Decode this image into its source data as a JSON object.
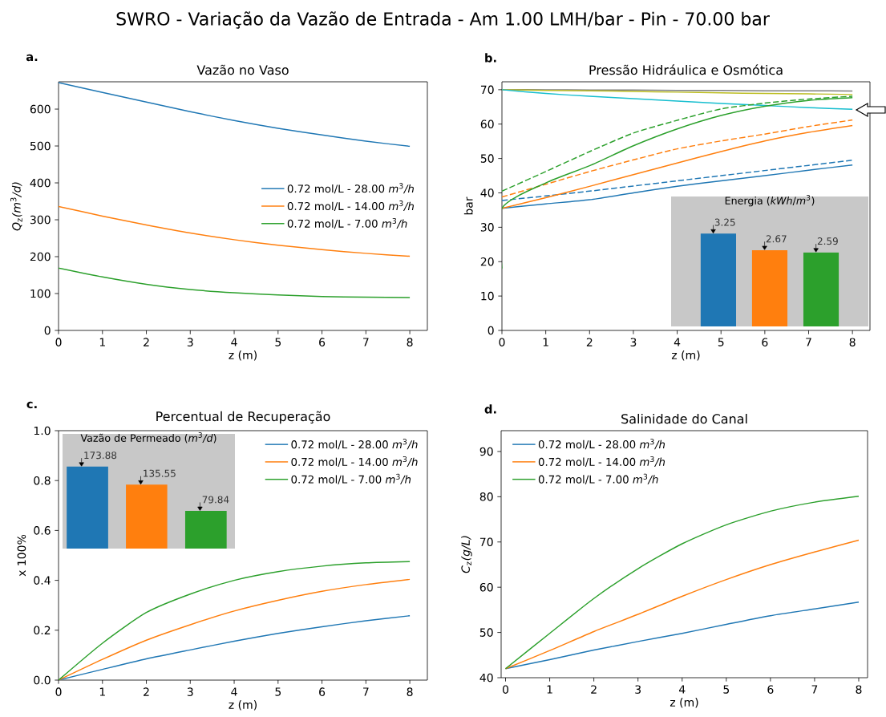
{
  "chart_data": [
    {
      "type": "line",
      "title": "Vazão no Vaso",
      "xlabel": "z (m)",
      "ylabel": "*Q*$_{z}$*(m*$^{3}$*/d)*",
      "annotations": [
        "SWRO - Variação da Vazão de Entrada - Am 1.00 LMH/bar - Pin - 70.00 bar",
        "a."
      ],
      "x": [
        0,
        1,
        2,
        3,
        4,
        5,
        6,
        7,
        8
      ],
      "series": [
        {
          "name": "0.72 mol/L - 28.00 *m*$^{3}$*/h*",
          "color": "#1f77b4",
          "values": [
            672,
            645,
            619,
            593,
            569,
            548,
            530,
            513,
            499
          ]
        },
        {
          "name": "0.72 mol/L - 14.00 *m*$^{3}$*/h*",
          "color": "#ff7f0e",
          "values": [
            336,
            310,
            286,
            264,
            246,
            231,
            219,
            209,
            201
          ]
        },
        {
          "name": "0.72 mol/L - 7.00 *m*$^{3}$*/h*",
          "color": "#2ca02c",
          "values": [
            169,
            145,
            125,
            111,
            102,
            96,
            92,
            90,
            89
          ]
        }
      ],
      "xlim": [
        0,
        8.4
      ],
      "ylim": [
        0,
        674
      ],
      "xticks": [
        0,
        1,
        2,
        3,
        4,
        5,
        6,
        7,
        8
      ],
      "yticks": [
        0,
        100,
        200,
        300,
        400,
        500,
        600
      ],
      "legend": "right"
    },
    {
      "type": "line",
      "title": "Pressão Hidráulica e Osmótica",
      "xlabel": "z (m)",
      "ylabel": "bar",
      "annotations": [
        "b."
      ],
      "x": [
        0,
        1,
        2,
        3,
        4,
        5,
        6,
        7,
        8
      ],
      "series": [
        {
          "color": "#7f7f7f",
          "values": [
            70,
            70,
            69.9,
            69.9,
            69.8,
            69.8,
            69.7,
            69.7,
            69.6
          ]
        },
        {
          "color": "#bcbd22",
          "values": [
            70,
            69.8,
            69.7,
            69.5,
            69.3,
            69.1,
            68.9,
            68.8,
            68.6
          ]
        },
        {
          "color": "#17becf",
          "values": [
            70,
            68.9,
            68.1,
            67.4,
            66.7,
            66,
            65.4,
            64.8,
            64.3
          ]
        },
        {
          "color": "#1f77b4",
          "values": [
            35.5,
            36.8,
            38.0,
            40.0,
            41.9,
            43.5,
            45.0,
            46.6,
            48.1
          ]
        },
        {
          "color": "#1f77b4",
          "line_style": "dashed",
          "values": [
            37.8,
            39.1,
            40.5,
            42.0,
            43.5,
            45.0,
            46.5,
            48.0,
            49.5
          ]
        },
        {
          "color": "#ff7f0e",
          "values": [
            35.5,
            38.6,
            41.9,
            45.3,
            48.7,
            52.0,
            55.1,
            57.6,
            59.6
          ]
        },
        {
          "color": "#ff7f0e",
          "line_style": "dashed",
          "values": [
            38.8,
            42.5,
            46.2,
            49.6,
            52.8,
            55.1,
            57.1,
            59.3,
            61.2
          ]
        },
        {
          "color": "#2ca02c",
          "x": [
            0,
            0,
            1,
            2,
            3,
            4,
            5,
            6,
            7,
            8
          ],
          "values": [
            18,
            35.5,
            42.9,
            47.9,
            53.7,
            58.6,
            62.5,
            65.2,
            66.9,
            67.7
          ]
        },
        {
          "color": "#2ca02c",
          "line_style": "dashed",
          "values": [
            40.5,
            46.2,
            52.0,
            57.4,
            61.1,
            64.4,
            66.1,
            67.3,
            68.1
          ]
        }
      ],
      "xlim": [
        0,
        8.4
      ],
      "ylim": [
        0,
        72.3
      ],
      "xticks": [
        0,
        1,
        2,
        3,
        4,
        5,
        6,
        7,
        8
      ],
      "yticks": [
        0,
        10,
        20,
        30,
        40,
        50,
        60,
        70
      ]
    },
    {
      "type": "bar",
      "title": "Energia (*kWh*/*m*$^{3}$)",
      "categories": [
        null,
        null,
        null
      ],
      "values": [
        3.25,
        2.67,
        2.59
      ],
      "colors": [
        "#1f77b4",
        "#ff7f0e",
        "#2ca02c"
      ],
      "data_labels": true,
      "tick_labels": false
    },
    {
      "type": "line",
      "title": "Percentual de Recuperação",
      "xlabel": "z (m)",
      "ylabel": "x 100%",
      "annotations": [
        "c."
      ],
      "x": [
        0,
        1,
        2,
        3,
        4,
        5,
        6,
        7,
        8
      ],
      "series": [
        {
          "name": "0.72 mol/L - 28.00 *m*$^{3}$*/h*",
          "color": "#1f77b4",
          "values": [
            0,
            0.043,
            0.085,
            0.121,
            0.156,
            0.187,
            0.214,
            0.238,
            0.258
          ]
        },
        {
          "name": "0.72 mol/L - 14.00 *m*$^{3}$*/h*",
          "color": "#ff7f0e",
          "values": [
            0,
            0.083,
            0.16,
            0.222,
            0.277,
            0.32,
            0.356,
            0.383,
            0.404
          ]
        },
        {
          "name": "0.72 mol/L - 7.00 *m*$^{3}$*/h*",
          "color": "#2ca02c",
          "values": [
            0,
            0.148,
            0.271,
            0.345,
            0.4,
            0.435,
            0.457,
            0.47,
            0.475
          ]
        }
      ],
      "xlim": [
        0,
        8.4
      ],
      "ylim": [
        0,
        1
      ],
      "xticks": [
        0,
        1,
        2,
        3,
        4,
        5,
        6,
        7,
        8
      ],
      "yticks": [
        {
          "value": 0,
          "label": "0.0"
        },
        {
          "value": 0.2,
          "label": "0.2"
        },
        {
          "value": 0.4,
          "label": "0.4"
        },
        {
          "value": 0.6,
          "label": "0.6"
        },
        {
          "value": 0.8,
          "label": "0.8"
        },
        {
          "value": 1,
          "label": "1.0"
        }
      ],
      "legend": "top right"
    },
    {
      "type": "bar",
      "title": "Vazão de Permeado (*m*$^{3}$*/d*)",
      "categories": [
        null,
        null,
        null
      ],
      "values": [
        173.88,
        135.55,
        79.84
      ],
      "colors": [
        "#1f77b4",
        "#ff7f0e",
        "#2ca02c"
      ],
      "data_labels": true,
      "tick_labels": false
    },
    {
      "type": "line",
      "title": "Salinidade do Canal",
      "xlabel": "z (m)",
      "ylabel": "*C*$_{z}$*(g/L)*",
      "annotations": [
        "d."
      ],
      "x": [
        0,
        1,
        2,
        3,
        4,
        5,
        6,
        7,
        8
      ],
      "series": [
        {
          "name": "0.72 mol/L - 28.00 *m*$^{3}$*/h*",
          "color": "#1f77b4",
          "values": [
            42,
            44.0,
            46.1,
            48.0,
            49.8,
            51.8,
            53.7,
            55.2,
            56.7
          ]
        },
        {
          "name": "0.72 mol/L - 14.00 *m*$^{3}$*/h*",
          "color": "#ff7f0e",
          "values": [
            42,
            46.0,
            50.2,
            54.0,
            58.0,
            61.7,
            65.0,
            67.8,
            70.4
          ]
        },
        {
          "name": "0.72 mol/L - 7.00 *m*$^{3}$*/h*",
          "color": "#2ca02c",
          "values": [
            42,
            49.8,
            57.5,
            64.1,
            69.6,
            73.8,
            76.8,
            78.8,
            80.1
          ]
        }
      ],
      "xlim": [
        -0.1,
        8.2
      ],
      "ylim": [
        40,
        94.6
      ],
      "xticks": [
        0,
        1,
        2,
        3,
        4,
        5,
        6,
        7,
        8
      ],
      "yticks": [
        40,
        50,
        60,
        70,
        80,
        90
      ],
      "legend": "top left"
    }
  ]
}
